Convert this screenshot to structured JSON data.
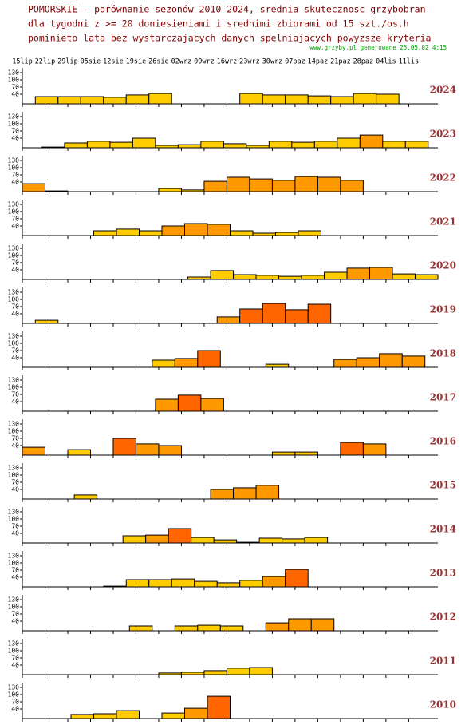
{
  "header": {
    "lines": [
      "POMORSKIE - porównanie sezonów 2010-2024, srednia skutecznosc grzybobran",
      "dla tygodni z >= 20 doniesieniami i srednimi zbiorami od 15 szt./os.h",
      "pominieto lata bez wystarczajacych danych spelniajacych powyzsze kryteria"
    ],
    "source": "www.grzyby.pl generowane 25.05.02  4:15"
  },
  "x_axis": {
    "xlim": [
      0,
      128
    ],
    "xticks": [
      {
        "value": 0,
        "label": "15lip"
      },
      {
        "value": 7,
        "label": "22lip"
      },
      {
        "value": 14,
        "label": "29lip"
      },
      {
        "value": 21,
        "label": "05sie"
      },
      {
        "value": 28,
        "label": "12sie"
      },
      {
        "value": 35,
        "label": "19sie"
      },
      {
        "value": 42,
        "label": "26sie"
      },
      {
        "value": 49,
        "label": "02wrz"
      },
      {
        "value": 56,
        "label": "09wrz"
      },
      {
        "value": 63,
        "label": "16wrz"
      },
      {
        "value": 70,
        "label": "23wrz"
      },
      {
        "value": 77,
        "label": "30wrz"
      },
      {
        "value": 84,
        "label": "07paz"
      },
      {
        "value": 91,
        "label": "14paz"
      },
      {
        "value": 98,
        "label": "21paz"
      },
      {
        "value": 105,
        "label": "28paz"
      },
      {
        "value": 112,
        "label": "04lis"
      },
      {
        "value": 119,
        "label": "11lis"
      }
    ]
  },
  "y_axis": {
    "ylim": [
      0,
      150
    ],
    "yticks": [
      40,
      70,
      100,
      130
    ]
  },
  "chart_data": [
    {
      "type": "bar",
      "label": "2024",
      "x": [
        4,
        11,
        18,
        25,
        32,
        39,
        67,
        74,
        81,
        88,
        95,
        102,
        109
      ],
      "values": [
        30,
        30,
        30,
        27,
        37,
        43,
        43,
        37,
        37,
        33,
        30,
        43,
        40
      ],
      "colors": [
        "#ffcc00",
        "#ffcc00",
        "#ffcc00",
        "#ffcc00",
        "#ffcc00",
        "#ffcc00",
        "#ffcc00",
        "#ffcc00",
        "#ffcc00",
        "#ffcc00",
        "#ffcc00",
        "#ffcc00",
        "#ffcc00"
      ]
    },
    {
      "type": "bar",
      "label": "2023",
      "x": [
        6,
        13,
        20,
        27,
        34,
        41,
        48,
        55,
        62,
        69,
        76,
        83,
        90,
        97,
        104,
        111,
        118
      ],
      "values": [
        3,
        20,
        27,
        23,
        40,
        10,
        13,
        27,
        17,
        10,
        27,
        23,
        27,
        40,
        53,
        27,
        27
      ],
      "colors": [
        "#ffcc00",
        "#ffcc00",
        "#ffcc00",
        "#ffcc00",
        "#ffcc00",
        "#ffcc00",
        "#ffcc00",
        "#ffcc00",
        "#ffcc00",
        "#ffcc00",
        "#ffcc00",
        "#ffcc00",
        "#ffcc00",
        "#ffcc00",
        "#ff9900",
        "#ffcc00",
        "#ffcc00"
      ]
    },
    {
      "type": "bar",
      "label": "2022",
      "x": [
        0,
        7,
        42,
        49,
        56,
        63,
        70,
        77,
        84,
        91,
        98
      ],
      "values": [
        33,
        3,
        13,
        7,
        43,
        60,
        53,
        47,
        63,
        60,
        47
      ],
      "colors": [
        "#ff9900",
        "#ffcc00",
        "#ffcc00",
        "#ffcc00",
        "#ff9900",
        "#ff9900",
        "#ff9900",
        "#ff9900",
        "#ff9900",
        "#ff9900",
        "#ff9900"
      ]
    },
    {
      "type": "bar",
      "label": "2021",
      "x": [
        22,
        29,
        36,
        43,
        50,
        57,
        64,
        71,
        78,
        85
      ],
      "values": [
        20,
        27,
        20,
        40,
        50,
        47,
        20,
        10,
        13,
        20
      ],
      "colors": [
        "#ffcc00",
        "#ffcc00",
        "#ffcc00",
        "#ff9900",
        "#ff9900",
        "#ff9900",
        "#ffcc00",
        "#ffcc00",
        "#ffcc00",
        "#ffcc00"
      ]
    },
    {
      "type": "bar",
      "label": "2020",
      "x": [
        51,
        58,
        65,
        72,
        79,
        86,
        93,
        100,
        107,
        114,
        121
      ],
      "values": [
        10,
        37,
        20,
        17,
        13,
        17,
        30,
        47,
        50,
        23,
        20
      ],
      "colors": [
        "#ffcc00",
        "#ffcc00",
        "#ffcc00",
        "#ffcc00",
        "#ffcc00",
        "#ffcc00",
        "#ffcc00",
        "#ff9900",
        "#ff9900",
        "#ffcc00",
        "#ffcc00"
      ]
    },
    {
      "type": "bar",
      "label": "2019",
      "x": [
        4,
        60,
        67,
        74,
        81,
        88
      ],
      "values": [
        13,
        27,
        60,
        83,
        57,
        80
      ],
      "colors": [
        "#ffcc00",
        "#ff9900",
        "#ff6600",
        "#ff6600",
        "#ff6600",
        "#ff6600"
      ]
    },
    {
      "type": "bar",
      "label": "2018",
      "x": [
        40,
        47,
        54,
        75,
        96,
        103,
        110,
        117
      ],
      "values": [
        30,
        37,
        70,
        13,
        33,
        40,
        57,
        47
      ],
      "colors": [
        "#ffcc00",
        "#ff9900",
        "#ff6600",
        "#ffcc00",
        "#ff9900",
        "#ff9900",
        "#ff9900",
        "#ff9900"
      ]
    },
    {
      "type": "bar",
      "label": "2017",
      "x": [
        41,
        48,
        55
      ],
      "values": [
        50,
        67,
        53
      ],
      "colors": [
        "#ff9900",
        "#ff6600",
        "#ff9900"
      ]
    },
    {
      "type": "bar",
      "label": "2016",
      "x": [
        0,
        14,
        28,
        35,
        42,
        77,
        84,
        98,
        105
      ],
      "values": [
        33,
        23,
        70,
        47,
        40,
        13,
        13,
        53,
        47
      ],
      "colors": [
        "#ff9900",
        "#ffcc00",
        "#ff6600",
        "#ff9900",
        "#ff9900",
        "#ffcc00",
        "#ffcc00",
        "#ff6600",
        "#ff9900"
      ]
    },
    {
      "type": "bar",
      "label": "2015",
      "x": [
        16,
        58,
        65,
        72
      ],
      "values": [
        17,
        40,
        47,
        57
      ],
      "colors": [
        "#ffcc00",
        "#ff9900",
        "#ff9900",
        "#ff9900"
      ]
    },
    {
      "type": "bar",
      "label": "2014",
      "x": [
        31,
        38,
        45,
        52,
        59,
        66,
        73,
        80,
        87
      ],
      "values": [
        30,
        33,
        60,
        23,
        13,
        3,
        20,
        17,
        23
      ],
      "colors": [
        "#ffcc00",
        "#ff9900",
        "#ff6600",
        "#ffcc00",
        "#ffcc00",
        "#ffcc00",
        "#ffcc00",
        "#ffcc00",
        "#ffcc00"
      ]
    },
    {
      "type": "bar",
      "label": "2013",
      "x": [
        25,
        32,
        39,
        46,
        53,
        60,
        67,
        74,
        81
      ],
      "values": [
        3,
        30,
        30,
        33,
        23,
        17,
        27,
        43,
        73
      ],
      "colors": [
        "#ffcc00",
        "#ffcc00",
        "#ffcc00",
        "#ffcc00",
        "#ffcc00",
        "#ffcc00",
        "#ffcc00",
        "#ff9900",
        "#ff6600"
      ]
    },
    {
      "type": "bar",
      "label": "2012",
      "x": [
        33,
        47,
        54,
        61,
        75,
        82,
        89
      ],
      "values": [
        20,
        20,
        23,
        20,
        33,
        50,
        50
      ],
      "colors": [
        "#ffcc00",
        "#ffcc00",
        "#ffcc00",
        "#ffcc00",
        "#ff9900",
        "#ff9900",
        "#ff9900"
      ]
    },
    {
      "type": "bar",
      "label": "2011",
      "x": [
        42,
        49,
        56,
        63,
        70
      ],
      "values": [
        7,
        10,
        17,
        27,
        30
      ],
      "colors": [
        "#ffcc00",
        "#ffcc00",
        "#ffcc00",
        "#ffcc00",
        "#ffcc00"
      ]
    },
    {
      "type": "bar",
      "label": "2010",
      "x": [
        15,
        22,
        29,
        43,
        50,
        57
      ],
      "values": [
        17,
        20,
        33,
        23,
        43,
        93
      ],
      "colors": [
        "#ffcc00",
        "#ffcc00",
        "#ffcc00",
        "#ffcc00",
        "#ff9900",
        "#ff6600"
      ]
    }
  ]
}
